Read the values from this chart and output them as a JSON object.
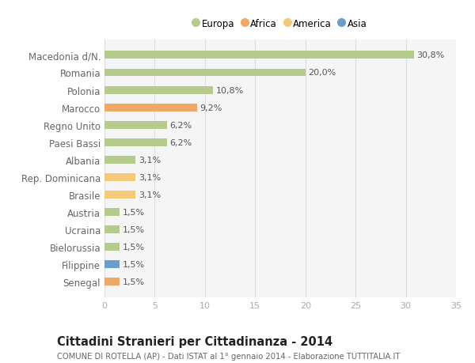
{
  "title": "Cittadini Stranieri per Cittadinanza - 2014",
  "subtitle": "COMUNE DI ROTELLA (AP) - Dati ISTAT al 1° gennaio 2014 - Elaborazione TUTTITALIA.IT",
  "categories": [
    "Senegal",
    "Filippine",
    "Bielorussia",
    "Ucraina",
    "Austria",
    "Brasile",
    "Rep. Dominicana",
    "Albania",
    "Paesi Bassi",
    "Regno Unito",
    "Marocco",
    "Polonia",
    "Romania",
    "Macedonia d/N."
  ],
  "values": [
    1.5,
    1.5,
    1.5,
    1.5,
    1.5,
    3.1,
    3.1,
    3.1,
    6.2,
    6.2,
    9.2,
    10.8,
    20.0,
    30.8
  ],
  "labels": [
    "1,5%",
    "1,5%",
    "1,5%",
    "1,5%",
    "1,5%",
    "3,1%",
    "3,1%",
    "3,1%",
    "6,2%",
    "6,2%",
    "9,2%",
    "10,8%",
    "20,0%",
    "30,8%"
  ],
  "colors": [
    "#f0a868",
    "#6b9ec9",
    "#b5ca8d",
    "#b5ca8d",
    "#b5ca8d",
    "#f5c97a",
    "#f5c97a",
    "#b5ca8d",
    "#b5ca8d",
    "#b5ca8d",
    "#f0a868",
    "#b5ca8d",
    "#b5ca8d",
    "#b5ca8d"
  ],
  "legend": [
    {
      "label": "Europa",
      "color": "#b5ca8d"
    },
    {
      "label": "Africa",
      "color": "#f0a868"
    },
    {
      "label": "America",
      "color": "#f5c97a"
    },
    {
      "label": "Asia",
      "color": "#6b9ec9"
    }
  ],
  "xlim": [
    0,
    35
  ],
  "xticks": [
    0,
    5,
    10,
    15,
    20,
    25,
    30,
    35
  ],
  "plot_bg_color": "#f5f5f5",
  "fig_bg_color": "#ffffff",
  "grid_color": "#dddddd",
  "bar_height": 0.45,
  "label_fontsize": 8.0,
  "tick_fontsize": 8.0,
  "ytick_fontsize": 8.5,
  "title_fontsize": 10.5,
  "subtitle_fontsize": 7.2,
  "value_color": "#555555",
  "ytick_color": "#666666",
  "xtick_color": "#aaaaaa"
}
